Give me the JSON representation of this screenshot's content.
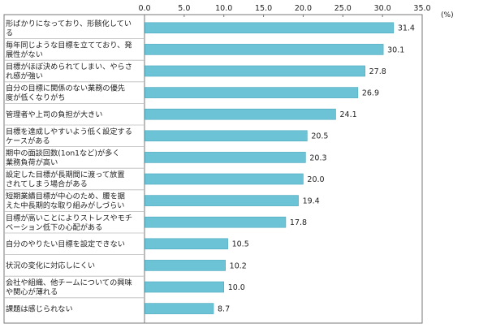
{
  "chart_data": {
    "type": "bar",
    "orientation": "horizontal",
    "unit_label": "(%)",
    "xlim": [
      0,
      35
    ],
    "ticks": [
      "0.0",
      "5.0",
      "10.0",
      "15.0",
      "20.0",
      "25.0",
      "30.0",
      "35.0"
    ],
    "tick_values": [
      0,
      5,
      10,
      15,
      20,
      25,
      30,
      35
    ],
    "grid": false,
    "categories": [
      [
        "形ばかりになっており、形骸化してい",
        "る"
      ],
      [
        "毎年同じような目標を立てており、発",
        "展性がない"
      ],
      [
        "目標がほぼ決められてしまい、やらさ",
        "れ感が強い"
      ],
      [
        "自分の目標に関係のない業務の優先",
        "度が低くなりがち"
      ],
      [
        "管理者や上司の負担が大きい"
      ],
      [
        "目標を達成しやすいよう低く設定する",
        "ケースがある"
      ],
      [
        "期中の面談回数(1on1など)が多く",
        "業務負荷が高い"
      ],
      [
        "設定した目標が長期間に渡って放置",
        "されてしまう場合がある"
      ],
      [
        "短期業績目標が中心のため、腰を据",
        "えた中長期的な取り組みがしづらい"
      ],
      [
        "目標が高いことによりストレスやモチ",
        "ベーション低下の心配がある"
      ],
      [
        "自分のやりたい目標を設定できない"
      ],
      [
        "状況の変化に対応しにくい"
      ],
      [
        "会社や組織、他チームについての興味",
        "や関心が薄れる"
      ],
      [
        "課題は感じられない"
      ]
    ],
    "values": [
      31.4,
      30.1,
      27.8,
      26.9,
      24.1,
      20.5,
      20.3,
      20.0,
      19.4,
      17.8,
      10.5,
      10.2,
      10.0,
      8.7
    ],
    "value_labels": [
      "31.4",
      "30.1",
      "27.8",
      "26.9",
      "24.1",
      "20.5",
      "20.3",
      "20.0",
      "19.4",
      "17.8",
      "10.5",
      "10.2",
      "10.0",
      "8.7"
    ],
    "bar_color": "#6cc3d5",
    "bar_edge_color": "#4aa9bd",
    "frame_color": "#777777"
  }
}
